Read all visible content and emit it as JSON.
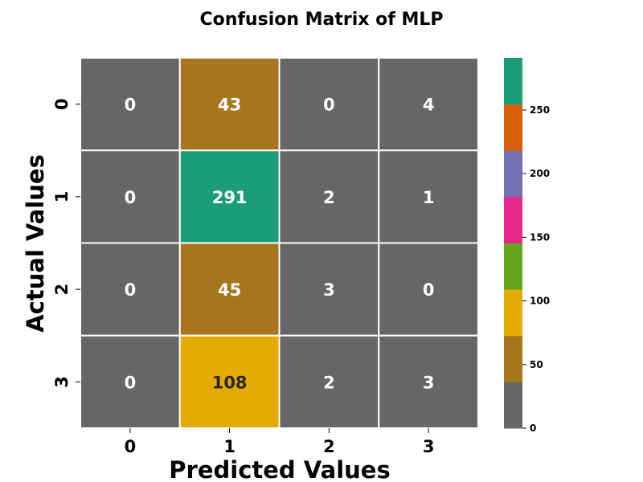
{
  "chart_data": {
    "type": "heatmap",
    "title": "Confusion Matrix of MLP",
    "xlabel": "Predicted Values",
    "ylabel": "Actual Values",
    "x_tick_labels": [
      "0",
      "1",
      "2",
      "3"
    ],
    "y_tick_labels": [
      "0",
      "1",
      "2",
      "3"
    ],
    "matrix": [
      [
        0,
        43,
        0,
        4
      ],
      [
        0,
        291,
        2,
        1
      ],
      [
        0,
        45,
        3,
        0
      ],
      [
        0,
        108,
        2,
        3
      ]
    ],
    "colormap": "Dark2",
    "colormap_colors": [
      "#666666",
      "#a6761d",
      "#e6ab02",
      "#66a61e",
      "#e7298a",
      "#7570b3",
      "#d95f02",
      "#1b9e77"
    ],
    "value_range": [
      0,
      291
    ],
    "colorbar_ticks": [
      0,
      50,
      100,
      150,
      200,
      250
    ],
    "colorbar_tick_labels": [
      "0",
      "50",
      "100",
      "150",
      "200",
      "250"
    ],
    "grid_line_color": "#ffffff"
  }
}
